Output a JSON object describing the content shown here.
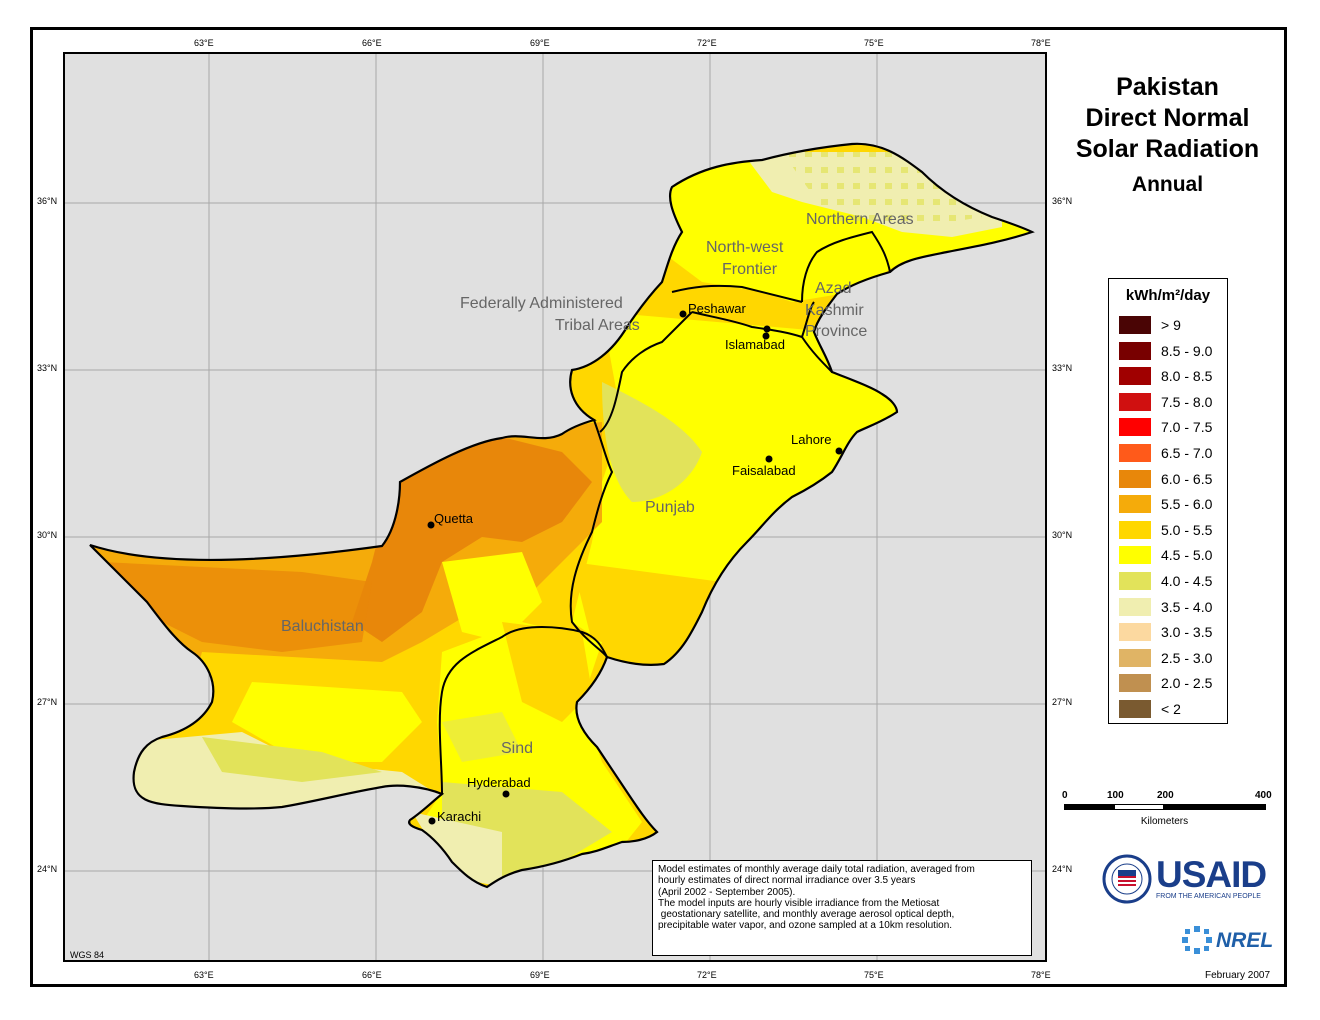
{
  "title": [
    "Pakistan",
    "Direct Normal",
    "Solar Radiation"
  ],
  "subtitle": "Annual",
  "longitudes": [
    "63°E",
    "66°E",
    "69°E",
    "72°E",
    "75°E",
    "78°E"
  ],
  "latitudes": [
    "36°N",
    "33°N",
    "30°N",
    "27°N",
    "24°N"
  ],
  "regions": {
    "northern_areas": "Northern Areas",
    "nwf_1": "North-west",
    "nwf_2": "Frontier",
    "fata_1": "Federally Administered",
    "fata_2": "Tribal Areas",
    "azad_1": "Azad",
    "azad_2": "Kashmir",
    "azad_3": "Province",
    "punjab": "Punjab",
    "baluchistan": "Baluchistan",
    "sind": "Sind"
  },
  "cities": {
    "peshawar": "Peshawar",
    "islamabad": "Islamabad",
    "lahore": "Lahore",
    "faisalabad": "Faisalabad",
    "quetta": "Quetta",
    "hyderabad": "Hyderabad",
    "karachi": "Karachi"
  },
  "legend": {
    "title": "kWh/m²/day",
    "items": [
      {
        "label": "> 9",
        "color": "#4a0505"
      },
      {
        "label": "8.5 - 9.0",
        "color": "#780000"
      },
      {
        "label": "8.0 - 8.5",
        "color": "#a00000"
      },
      {
        "label": "7.5 - 8.0",
        "color": "#d01010"
      },
      {
        "label": "7.0 - 7.5",
        "color": "#ff0000"
      },
      {
        "label": "6.5 - 7.0",
        "color": "#ff5a1a"
      },
      {
        "label": "6.0 - 6.5",
        "color": "#e8870a"
      },
      {
        "label": "5.5 - 6.0",
        "color": "#f5ab0a"
      },
      {
        "label": "5.0 - 5.5",
        "color": "#ffd700"
      },
      {
        "label": "4.5 - 5.0",
        "color": "#ffff00"
      },
      {
        "label": "4.0 - 4.5",
        "color": "#e2e35a"
      },
      {
        "label": "3.5 - 4.0",
        "color": "#f0eeb0"
      },
      {
        "label": "3.0 - 3.5",
        "color": "#fcd9a0"
      },
      {
        "label": "2.5 - 3.0",
        "color": "#e0b465"
      },
      {
        "label": "2.0 - 2.5",
        "color": "#c09050"
      },
      {
        "label": "< 2",
        "color": "#7a5a30"
      }
    ]
  },
  "scale": {
    "ticks": [
      "0",
      "100",
      "200",
      "400"
    ],
    "unit": "Kilometers"
  },
  "note": [
    "Model estimates of monthly average daily total radiation, averaged from",
    "hourly estimates of direct normal irradiance over 3.5 years",
    "(April 2002 - September 2005).",
    "The model inputs are hourly visible irradiance from the Metiosat",
    " geostationary satellite, and monthly average aerosol optical depth,",
    "precipitable water vapor, and ozone sampled at a 10km resolution."
  ],
  "projection": "WGS 84",
  "date": "February 2007",
  "logos": {
    "usaid": "USAID",
    "usaid_tagline": "FROM THE AMERICAN PEOPLE",
    "nrel": "NREL"
  }
}
